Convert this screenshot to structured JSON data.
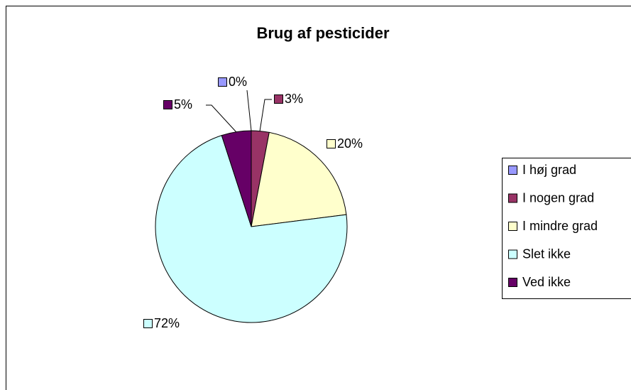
{
  "chart_data": {
    "type": "pie",
    "title": "Brug af pesticider",
    "categories": [
      "I høj grad",
      "I nogen grad",
      "I mindre grad",
      "Slet ikke",
      "Ved ikke"
    ],
    "values": [
      0,
      3,
      20,
      72,
      5
    ],
    "value_labels": [
      "0%",
      "3%",
      "20%",
      "72%",
      "5%"
    ],
    "colors": [
      "#9999ff",
      "#993366",
      "#ffffcc",
      "#ccffff",
      "#660066"
    ],
    "legend": "right"
  }
}
